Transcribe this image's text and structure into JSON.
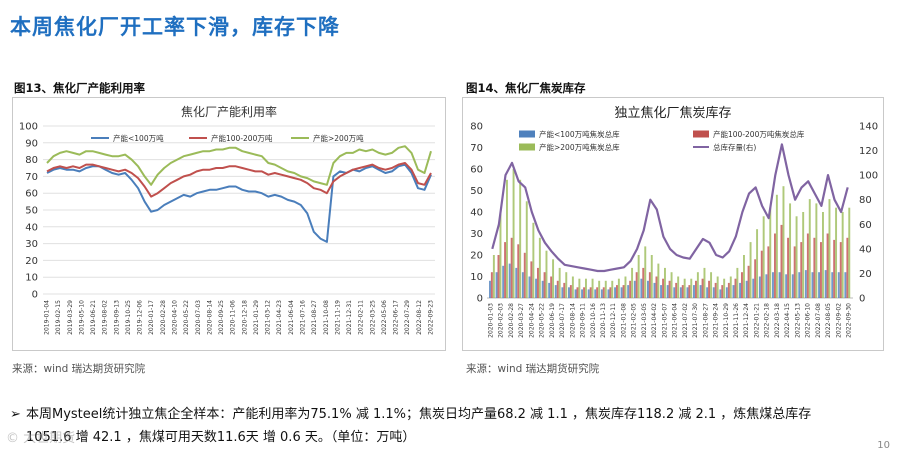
{
  "title": "本周焦化厂开工率下滑，库存下降",
  "page_number": "10",
  "watermark": "© 大世期货",
  "summary": {
    "line1": "本周Mysteel统计独立焦企全样本：产能利用率为75.1% 减 1.1%；焦炭日均产量68.2 减 1.1 ，焦炭库存118.2 减 2.1 ，炼焦煤总库存",
    "line2": "1051.6 增 42.1 ，焦煤可用天数11.6天 增 0.6 天。（单位：万吨）"
  },
  "charts": [
    {
      "label": "图13、焦化厂产能利用率",
      "source": "来源：wind   瑞达期货研究院"
    },
    {
      "label": "图14、焦化厂焦炭库存",
      "source": "来源：wind   瑞达期货研究院"
    }
  ],
  "chart_data": [
    {
      "type": "line",
      "title": "焦化厂产能利用率",
      "ylim": [
        0,
        100
      ],
      "yticks": [
        "0",
        "10",
        "20",
        "30",
        "40",
        "50",
        "60",
        "70",
        "80",
        "90",
        "100"
      ],
      "x_ticks": [
        "2019-01-04",
        "2019-02-15",
        "2019-03-29",
        "2019-05-10",
        "2019-06-21",
        "2019-08-02",
        "2019-09-13",
        "2019-10-25",
        "2019-12-06",
        "2020-01-17",
        "2020-02-28",
        "2020-04-10",
        "2020-05-22",
        "2020-07-03",
        "2020-08-14",
        "2020-09-25",
        "2020-11-06",
        "2020-12-18",
        "2021-01-29",
        "2021-03-12",
        "2021-04-23",
        "2021-06-04",
        "2021-07-16",
        "2021-08-27",
        "2021-10-08",
        "2021-11-19",
        "2021-12-31",
        "2022-02-11",
        "2022-03-25",
        "2022-05-06",
        "2022-06-17",
        "2022-07-29",
        "2022-08-12",
        "2022-09-23"
      ],
      "grid": true,
      "legend": "top",
      "series": [
        {
          "name": "产能<100万吨",
          "color": "#4a7ebb",
          "values": [
            72,
            74,
            75,
            74,
            74,
            73,
            75,
            76,
            76,
            74,
            72,
            71,
            72,
            68,
            63,
            55,
            49,
            50,
            53,
            55,
            57,
            59,
            58,
            60,
            61,
            62,
            62,
            63,
            64,
            64,
            62,
            61,
            61,
            60,
            58,
            59,
            58,
            56,
            55,
            53,
            48,
            37,
            33,
            31,
            70,
            73,
            72,
            74,
            73,
            75,
            76,
            74,
            72,
            73,
            76,
            77,
            72,
            63,
            62,
            71
          ]
        },
        {
          "name": "产能100-200万吨",
          "color": "#c0504d",
          "values": [
            73,
            75,
            76,
            75,
            76,
            75,
            77,
            77,
            76,
            75,
            74,
            73,
            74,
            72,
            69,
            64,
            58,
            60,
            63,
            66,
            68,
            70,
            71,
            73,
            74,
            74,
            75,
            75,
            76,
            76,
            75,
            74,
            73,
            73,
            71,
            72,
            71,
            70,
            69,
            68,
            66,
            63,
            62,
            60,
            67,
            70,
            72,
            74,
            75,
            76,
            77,
            75,
            74,
            75,
            77,
            78,
            74,
            66,
            65,
            72
          ]
        },
        {
          "name": "产能>200万吨",
          "color": "#9bbb59",
          "values": [
            78,
            82,
            84,
            85,
            84,
            83,
            85,
            85,
            84,
            83,
            82,
            82,
            83,
            80,
            76,
            70,
            65,
            71,
            75,
            78,
            80,
            82,
            83,
            84,
            85,
            85,
            86,
            86,
            87,
            87,
            85,
            84,
            83,
            82,
            78,
            77,
            75,
            73,
            72,
            70,
            69,
            67,
            66,
            65,
            78,
            82,
            84,
            84,
            86,
            85,
            86,
            84,
            83,
            84,
            87,
            88,
            84,
            74,
            72,
            85
          ]
        }
      ]
    },
    {
      "type": "bar+line",
      "title": "独立焦化厂焦炭库存",
      "ylim_left": [
        0,
        80
      ],
      "ylim_right": [
        0,
        140
      ],
      "yticks_left": [
        "0",
        "10",
        "20",
        "30",
        "40",
        "50",
        "60",
        "70",
        "80"
      ],
      "yticks_right": [
        "0",
        "20",
        "40",
        "60",
        "80",
        "100",
        "120",
        "140"
      ],
      "x_ticks": [
        "2020-01-03",
        "2020-02-03",
        "2020-02-28",
        "2020-03-27",
        "2020-04-24",
        "2020-05-22",
        "2020-06-19",
        "2020-07-17",
        "2020-08-14",
        "2020-09-11",
        "2020-10-16",
        "2020-11-13",
        "2020-12-11",
        "2021-01-08",
        "2021-02-05",
        "2021-03-05",
        "2021-04-02",
        "2021-05-07",
        "2021-06-04",
        "2021-07-02",
        "2021-07-30",
        "2021-08-27",
        "2021-09-24",
        "2021-10-29",
        "2021-11-26",
        "2021-12-24",
        "2022-01-21",
        "2022-02-18",
        "2022-03-18",
        "2022-04-15",
        "2022-05-13",
        "2022-06-10",
        "2022-07-08",
        "2022-08-05",
        "2022-09-02",
        "2022-09-30"
      ],
      "grid": false,
      "legend": "top",
      "series": [
        {
          "name": "产能<100万吨焦炭总库",
          "color": "#4f81bd",
          "axis": "left",
          "values": [
            8,
            12,
            15,
            16,
            14,
            12,
            10,
            9,
            8,
            7,
            6,
            5,
            5,
            4,
            4,
            4,
            4,
            4,
            4,
            5,
            5,
            6,
            8,
            9,
            8,
            7,
            6,
            6,
            5,
            5,
            5,
            6,
            6,
            5,
            5,
            4,
            5,
            6,
            7,
            8,
            9,
            10,
            11,
            12,
            12,
            11,
            11,
            12,
            13,
            12,
            12,
            13,
            12,
            12,
            12
          ]
        },
        {
          "name": "产能100-200万吨焦炭总库",
          "color": "#c0504d",
          "axis": "left",
          "values": [
            12,
            20,
            26,
            28,
            25,
            21,
            17,
            14,
            12,
            10,
            8,
            7,
            6,
            5,
            5,
            5,
            5,
            5,
            5,
            6,
            6,
            8,
            12,
            14,
            12,
            10,
            9,
            8,
            7,
            6,
            6,
            8,
            9,
            8,
            7,
            6,
            7,
            9,
            12,
            15,
            18,
            22,
            24,
            30,
            34,
            28,
            24,
            26,
            30,
            28,
            26,
            30,
            27,
            26,
            28
          ]
        },
        {
          "name": "产能>200万吨焦炭总库",
          "color": "#9bbb59",
          "axis": "left",
          "values": [
            20,
            40,
            55,
            60,
            55,
            45,
            35,
            28,
            22,
            18,
            14,
            12,
            10,
            9,
            9,
            9,
            8,
            8,
            8,
            9,
            10,
            14,
            20,
            24,
            20,
            16,
            14,
            12,
            10,
            9,
            9,
            12,
            14,
            12,
            10,
            9,
            10,
            14,
            20,
            26,
            32,
            38,
            42,
            48,
            52,
            44,
            38,
            40,
            46,
            44,
            40,
            46,
            42,
            40,
            42
          ]
        },
        {
          "name": "总库存量(右)",
          "color": "#8064a2",
          "axis": "right",
          "values": [
            40,
            60,
            100,
            110,
            95,
            90,
            70,
            55,
            45,
            38,
            32,
            27,
            26,
            25,
            24,
            23,
            22,
            22,
            23,
            24,
            25,
            30,
            40,
            55,
            80,
            72,
            50,
            40,
            35,
            33,
            32,
            40,
            48,
            45,
            35,
            33,
            38,
            50,
            70,
            85,
            90,
            75,
            65,
            100,
            125,
            100,
            80,
            90,
            95,
            85,
            75,
            100,
            80,
            70,
            90
          ]
        }
      ]
    }
  ]
}
